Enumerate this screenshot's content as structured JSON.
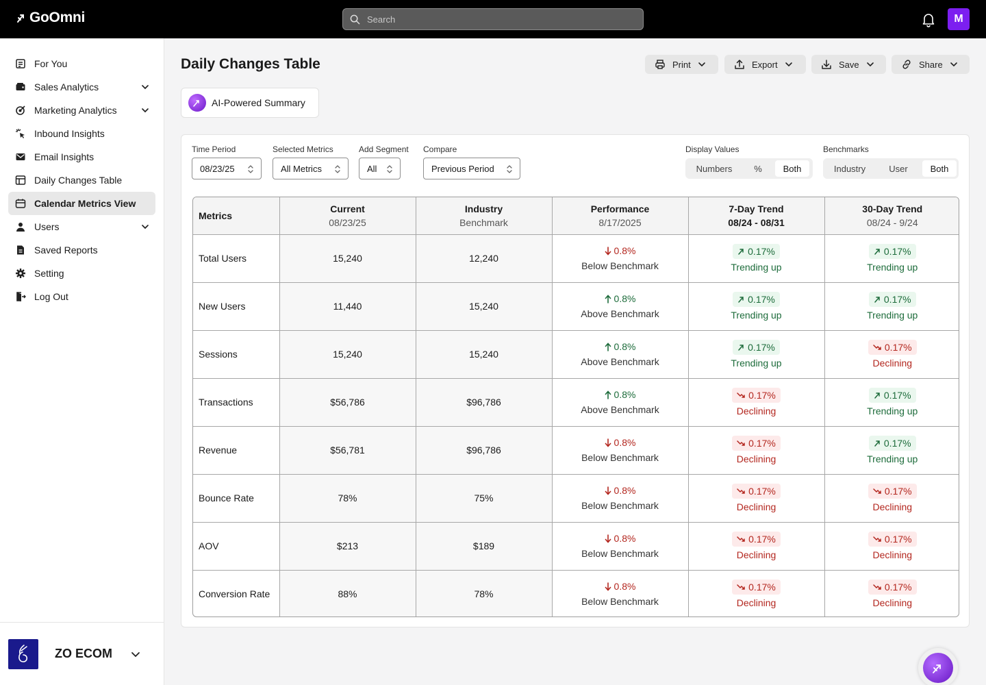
{
  "app": {
    "name": "GoOmni",
    "avatar_initial": "M"
  },
  "search": {
    "placeholder": "Search"
  },
  "sidebar": {
    "items": [
      {
        "label": "For You",
        "icon": "feed-icon"
      },
      {
        "label": "Sales Analytics",
        "icon": "wallet-icon",
        "expandable": true
      },
      {
        "label": "Marketing Analytics",
        "icon": "target-icon",
        "expandable": true
      },
      {
        "label": "Inbound Insights",
        "icon": "pointer-icon"
      },
      {
        "label": "Email Insights",
        "icon": "mail-icon"
      },
      {
        "label": "Daily Changes Table",
        "icon": "table-icon"
      },
      {
        "label": "Calendar Metrics View",
        "icon": "calendar-icon",
        "active": true
      },
      {
        "label": "Users",
        "icon": "user-icon",
        "expandable": true
      },
      {
        "label": "Saved Reports",
        "icon": "file-icon"
      },
      {
        "label": "Setting",
        "icon": "gear-icon"
      },
      {
        "label": "Log Out",
        "icon": "logout-icon"
      }
    ],
    "brand": {
      "name": "ZO ECOM"
    }
  },
  "main": {
    "title": "Daily Changes Table",
    "actions": {
      "print": "Print",
      "export": "Export",
      "save": "Save",
      "share": "Share"
    },
    "ai_summary": "AI-Powered Summary"
  },
  "filters": {
    "time_period": {
      "label": "Time Period",
      "value": "08/23/25"
    },
    "selected_metrics": {
      "label": "Selected Metrics",
      "value": "All Metrics"
    },
    "add_segment": {
      "label": "Add Segment",
      "value": "All"
    },
    "compare": {
      "label": "Compare",
      "value": "Previous Period"
    },
    "display_values": {
      "label": "Display Values",
      "options": [
        "Numbers",
        "%",
        "Both"
      ],
      "selected": "Both"
    },
    "benchmarks": {
      "label": "Benchmarks",
      "options": [
        "Industry",
        "User",
        "Both"
      ],
      "selected": "Both"
    }
  },
  "table": {
    "headers": {
      "metrics": "Metrics",
      "current": "Current",
      "current_sub": "08/23/25",
      "industry": "Industry",
      "industry_sub": "Benchmark",
      "performance": "Performance",
      "performance_sub": "8/17/2025",
      "trend7": "7-Day Trend",
      "trend7_sub": "08/24 - 08/31",
      "trend30": "30-Day Trend",
      "trend30_sub": "08/24 - 9/24"
    },
    "rows": [
      {
        "metric": "Total Users",
        "current": "15,240",
        "industry": "12,240",
        "perf_dir": "down",
        "perf_val": "0.8%",
        "perf_label": "Below Benchmark",
        "t7_dir": "up",
        "t7_val": "0.17%",
        "t7_label": "Trending up",
        "t30_dir": "up",
        "t30_val": "0.17%",
        "t30_label": "Trending up"
      },
      {
        "metric": "New Users",
        "current": "11,440",
        "industry": "15,240",
        "perf_dir": "up",
        "perf_val": "0.8%",
        "perf_label": "Above Benchmark",
        "t7_dir": "up",
        "t7_val": "0.17%",
        "t7_label": "Trending up",
        "t30_dir": "up",
        "t30_val": "0.17%",
        "t30_label": "Trending up"
      },
      {
        "metric": "Sessions",
        "current": "15,240",
        "industry": "15,240",
        "perf_dir": "up",
        "perf_val": "0.8%",
        "perf_label": "Above Benchmark",
        "t7_dir": "up",
        "t7_val": "0.17%",
        "t7_label": "Trending up",
        "t30_dir": "down",
        "t30_val": "0.17%",
        "t30_label": "Declining"
      },
      {
        "metric": "Transactions",
        "current": "$56,786",
        "industry": "$96,786",
        "perf_dir": "up",
        "perf_val": "0.8%",
        "perf_label": "Above Benchmark",
        "t7_dir": "down",
        "t7_val": "0.17%",
        "t7_label": "Declining",
        "t30_dir": "up",
        "t30_val": "0.17%",
        "t30_label": "Trending up"
      },
      {
        "metric": "Revenue",
        "current": "$56,781",
        "industry": "$96,786",
        "perf_dir": "down",
        "perf_val": "0.8%",
        "perf_label": "Below Benchmark",
        "t7_dir": "down",
        "t7_val": "0.17%",
        "t7_label": "Declining",
        "t30_dir": "up",
        "t30_val": "0.17%",
        "t30_label": "Trending up"
      },
      {
        "metric": "Bounce Rate",
        "current": "78%",
        "industry": "75%",
        "perf_dir": "down",
        "perf_val": "0.8%",
        "perf_label": "Below Benchmark",
        "t7_dir": "down",
        "t7_val": "0.17%",
        "t7_label": "Declining",
        "t30_dir": "down",
        "t30_val": "0.17%",
        "t30_label": "Declining"
      },
      {
        "metric": "AOV",
        "current": "$213",
        "industry": "$189",
        "perf_dir": "down",
        "perf_val": "0.8%",
        "perf_label": "Below Benchmark",
        "t7_dir": "down",
        "t7_val": "0.17%",
        "t7_label": "Declining",
        "t30_dir": "down",
        "t30_val": "0.17%",
        "t30_label": "Declining"
      },
      {
        "metric": "Conversion Rate",
        "current": "88%",
        "industry": "78%",
        "perf_dir": "down",
        "perf_val": "0.8%",
        "perf_label": "Below Benchmark",
        "t7_dir": "down",
        "t7_val": "0.17%",
        "t7_label": "Declining",
        "t30_dir": "down",
        "t30_val": "0.17%",
        "t30_label": "Declining"
      }
    ]
  },
  "colors": {
    "accent": "#7c1ff0",
    "up": "#1c6b3a",
    "down": "#b3261e",
    "brand_bg": "#1a1a8c"
  }
}
